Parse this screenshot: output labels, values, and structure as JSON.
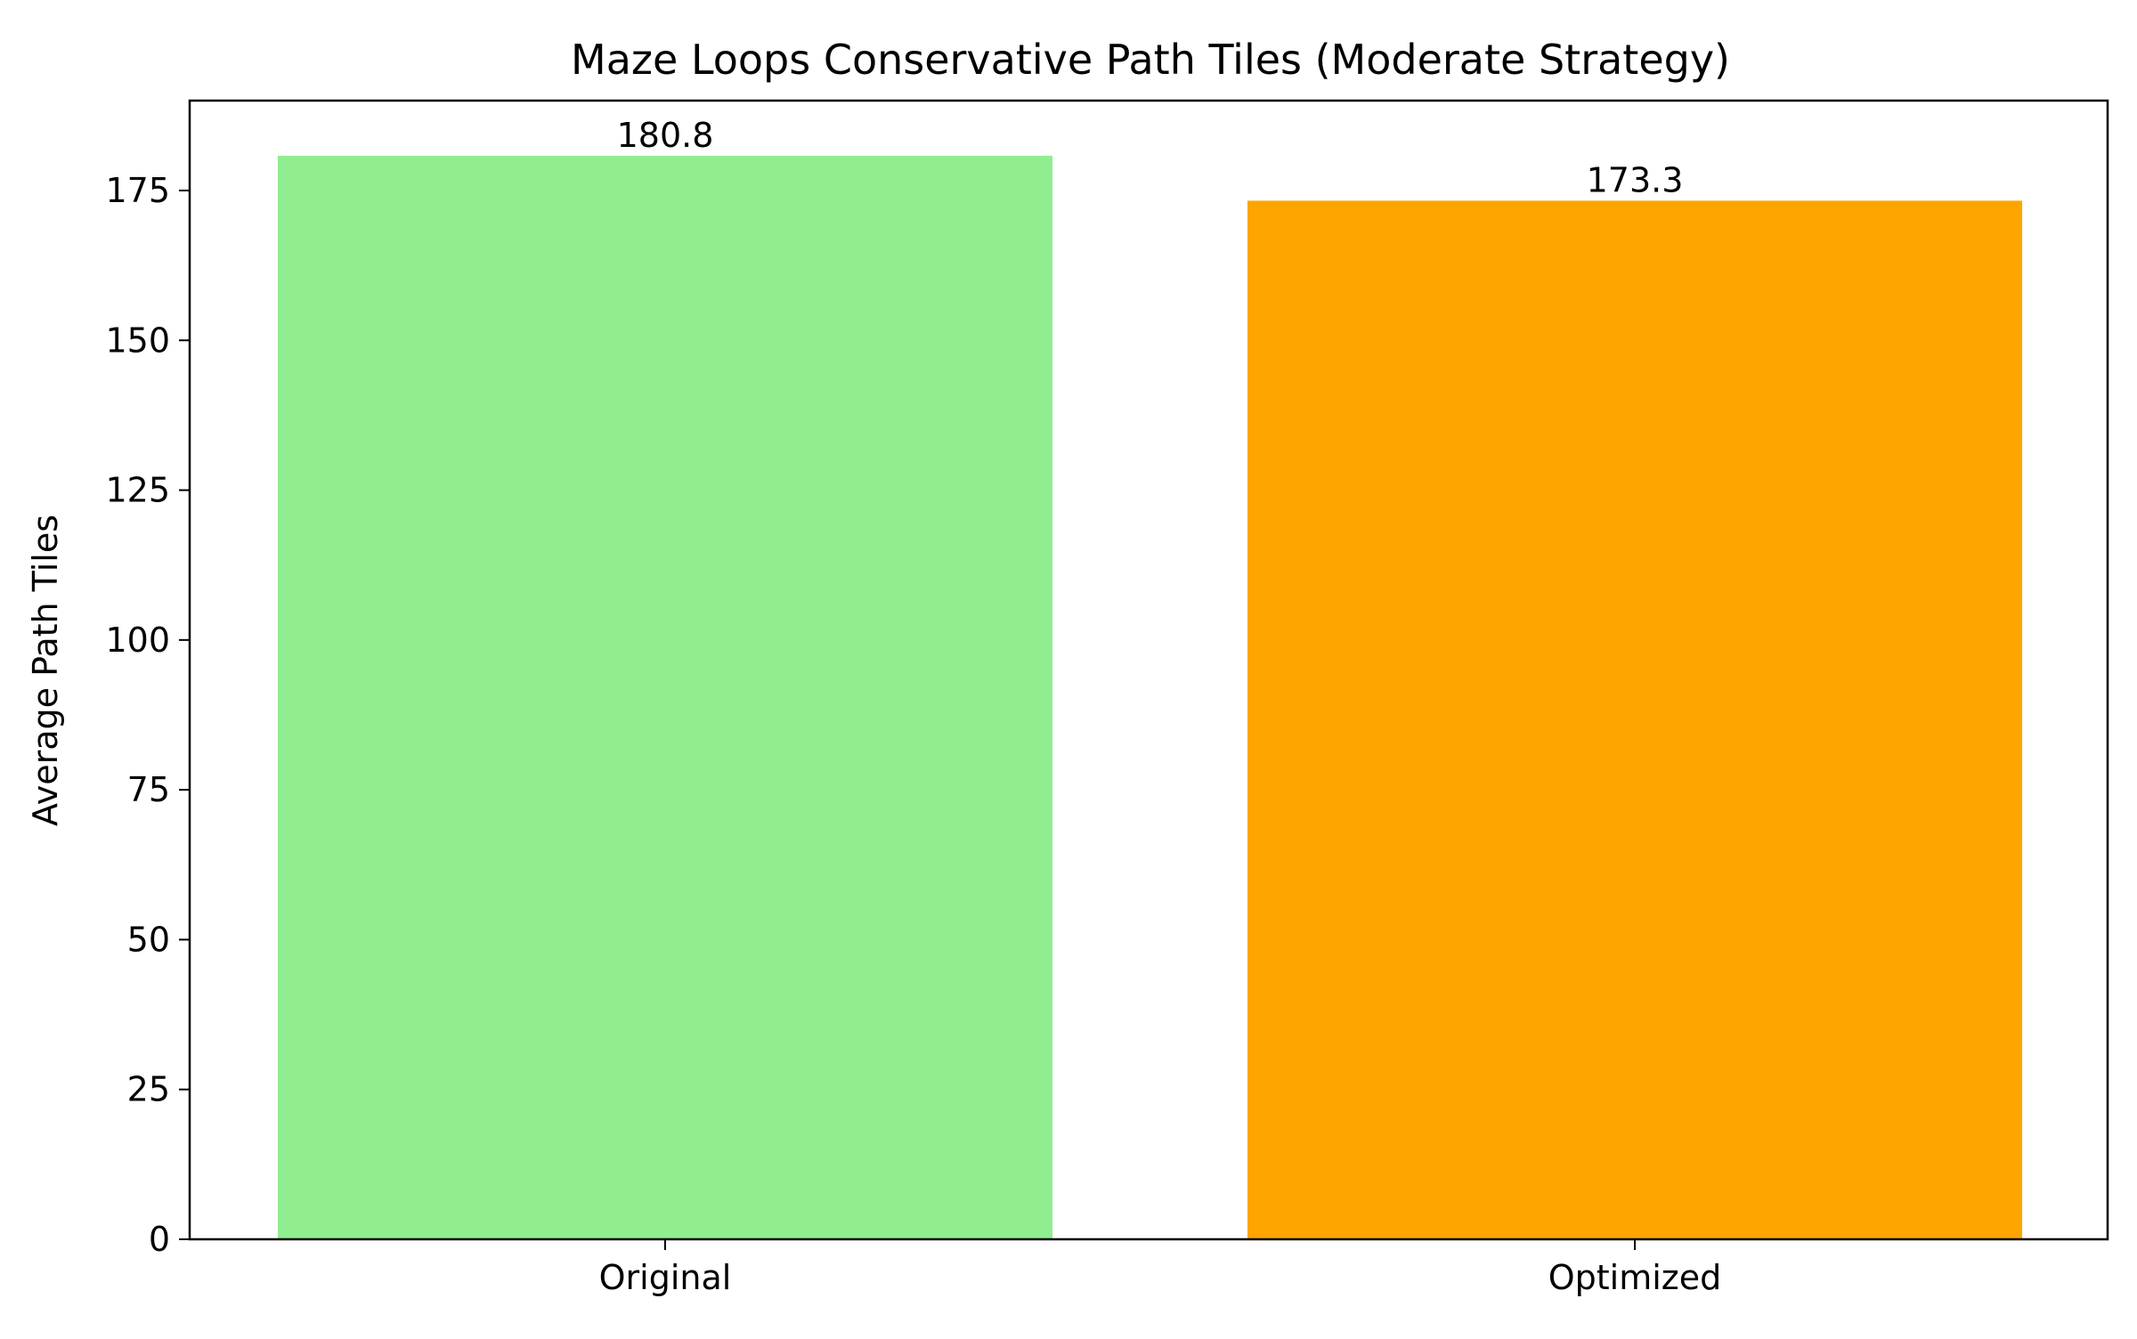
{
  "chart_data": {
    "type": "bar",
    "title": "Maze Loops Conservative Path Tiles (Moderate Strategy)",
    "xlabel": "",
    "ylabel": "Average Path Tiles",
    "categories": [
      "Original",
      "Optimized"
    ],
    "values": [
      180.8,
      173.3
    ],
    "value_labels": [
      "180.8",
      "173.3"
    ],
    "colors": [
      "#90ee90",
      "#ffa500"
    ],
    "ylim": [
      0,
      190
    ],
    "yticks": [
      0,
      25,
      50,
      75,
      100,
      125,
      150,
      175
    ],
    "grid": false,
    "legend": "none"
  }
}
